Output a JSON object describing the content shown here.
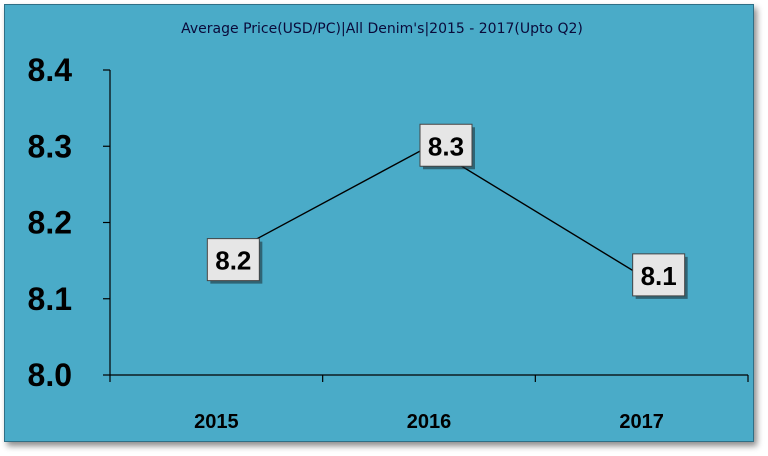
{
  "chart_data": {
    "type": "line",
    "title": "Average Price(USD/PC)|All Denim's|2015 - 2017(Upto Q2)",
    "categories": [
      "2015",
      "2016",
      "2017"
    ],
    "series": [
      {
        "values": [
          8.15,
          8.3,
          8.13
        ],
        "data_labels": [
          "8.2",
          "8.3",
          "8.1"
        ]
      }
    ],
    "ylim": [
      8.0,
      8.4
    ],
    "yticks": [
      "8.0",
      "8.1",
      "8.2",
      "8.3",
      "8.4"
    ],
    "grid": false,
    "legend": "none",
    "colors": {
      "background": "#4aabc8",
      "line": "#000000",
      "marker": "#c0392b",
      "label_box": "#e6e6e6"
    }
  }
}
